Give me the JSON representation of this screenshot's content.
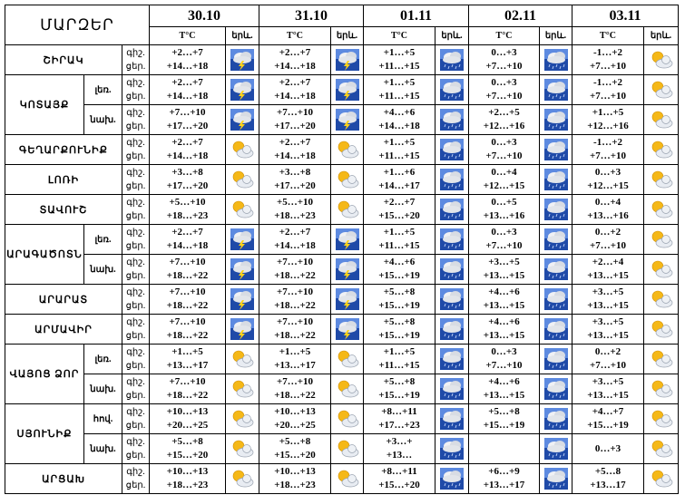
{
  "header": {
    "corner": "ՄԱՐԶԵՐ",
    "dates": [
      "30.10",
      "31.10",
      "01.11",
      "02.11",
      "03.11"
    ],
    "temp_label": "T°C",
    "icon_label": "երև."
  },
  "tod": {
    "night": "գիշ.",
    "day": "ցեր."
  },
  "rows": [
    {
      "region": "ՇԻՐԱԿ",
      "sub": "",
      "cells": [
        {
          "night": "+2…+7",
          "day": "+14…+18",
          "icon": "thunderstorm-icon"
        },
        {
          "night": "+2…+7",
          "day": "+14…+18",
          "icon": "thunderstorm-icon"
        },
        {
          "night": "+1…+5",
          "day": "+11…+15",
          "icon": "cloud-rain-icon"
        },
        {
          "night": "0…+3",
          "day": "+7…+10",
          "icon": "cloud-rain-icon"
        },
        {
          "night": "-1…+2",
          "day": "+7…+10",
          "icon": "partly-cloudy-icon"
        }
      ]
    },
    {
      "region": "ԿՈՏԱՅՔ",
      "sub": "լեռ.",
      "cells": [
        {
          "night": "+2…+7",
          "day": "+14…+18",
          "icon": "thunderstorm-icon"
        },
        {
          "night": "+2…+7",
          "day": "+14…+18",
          "icon": "thunderstorm-icon"
        },
        {
          "night": "+1…+5",
          "day": "+11…+15",
          "icon": "cloud-rain-icon"
        },
        {
          "night": "0…+3",
          "day": "+7…+10",
          "icon": "cloud-rain-icon"
        },
        {
          "night": "-1…+2",
          "day": "+7…+10",
          "icon": "partly-cloudy-icon"
        }
      ]
    },
    {
      "region": "",
      "sub": "նախ.",
      "cells": [
        {
          "night": "+7…+10",
          "day": "+17…+20",
          "icon": "thunderstorm-icon"
        },
        {
          "night": "+7…+10",
          "day": "+17…+20",
          "icon": "thunderstorm-icon"
        },
        {
          "night": "+4…+6",
          "day": "+14…+18",
          "icon": "cloud-rain-icon"
        },
        {
          "night": "+2…+5",
          "day": "+12…+16",
          "icon": "cloud-rain-icon"
        },
        {
          "night": "+1…+5",
          "day": "+12…+16",
          "icon": "partly-cloudy-icon"
        }
      ]
    },
    {
      "region": "ԳԵՂԱՐՔՈՒՆԻՔ",
      "sub": "",
      "cells": [
        {
          "night": "+2…+7",
          "day": "+14…+18",
          "icon": "partly-cloudy-icon"
        },
        {
          "night": "+2…+7",
          "day": "+14…+18",
          "icon": "partly-cloudy-icon"
        },
        {
          "night": "+1…+5",
          "day": "+11…+15",
          "icon": "cloud-rain-icon"
        },
        {
          "night": "0…+3",
          "day": "+7…+10",
          "icon": "cloud-rain-icon"
        },
        {
          "night": "-1…+2",
          "day": "+7…+10",
          "icon": "partly-cloudy-icon"
        }
      ]
    },
    {
      "region": "ԼՈՌԻ",
      "sub": "",
      "cells": [
        {
          "night": "+3…+8",
          "day": "+17…+20",
          "icon": "partly-cloudy-icon"
        },
        {
          "night": "+3…+8",
          "day": "+17…+20",
          "icon": "partly-cloudy-icon"
        },
        {
          "night": "+1…+6",
          "day": "+14…+17",
          "icon": "cloud-rain-icon"
        },
        {
          "night": "0…+4",
          "day": "+12…+15",
          "icon": "cloud-rain-icon"
        },
        {
          "night": "0…+3",
          "day": "+12…+15",
          "icon": "partly-cloudy-icon"
        }
      ]
    },
    {
      "region": "ՏԱՎՈՒՇ",
      "sub": "",
      "cells": [
        {
          "night": "+5…+10",
          "day": "+18…+23",
          "icon": "partly-cloudy-icon"
        },
        {
          "night": "+5…+10",
          "day": "+18…+23",
          "icon": "partly-cloudy-icon"
        },
        {
          "night": "+2…+7",
          "day": "+15…+20",
          "icon": "cloud-rain-icon"
        },
        {
          "night": "0…+5",
          "day": "+13…+16",
          "icon": "cloud-rain-icon"
        },
        {
          "night": "0…+4",
          "day": "+13…+16",
          "icon": "partly-cloudy-icon"
        }
      ]
    },
    {
      "region": "ԱՐԱԳԱԾՈՏՆ",
      "sub": "լեռ.",
      "cells": [
        {
          "night": "+2…+7",
          "day": "+14…+18",
          "icon": "thunderstorm-icon"
        },
        {
          "night": "+2…+7",
          "day": "+14…+18",
          "icon": "thunderstorm-icon"
        },
        {
          "night": "+1…+5",
          "day": "+11…+15",
          "icon": "cloud-rain-icon"
        },
        {
          "night": "0…+3",
          "day": "+7…+10",
          "icon": "cloud-rain-icon"
        },
        {
          "night": "0…+2",
          "day": "+7…+10",
          "icon": "partly-cloudy-icon"
        }
      ]
    },
    {
      "region": "",
      "sub": "նախ.",
      "cells": [
        {
          "night": "+7…+10",
          "day": "+18…+22",
          "icon": "thunderstorm-icon"
        },
        {
          "night": "+7…+10",
          "day": "+18…+22",
          "icon": "thunderstorm-icon"
        },
        {
          "night": "+4…+6",
          "day": "+15…+19",
          "icon": "cloud-rain-icon"
        },
        {
          "night": "+3…+5",
          "day": "+13…+15",
          "icon": "cloud-rain-icon"
        },
        {
          "night": "+2…+4",
          "day": "+13…+15",
          "icon": "partly-cloudy-icon"
        }
      ]
    },
    {
      "region": "ԱՐԱՐԱՏ",
      "sub": "",
      "cells": [
        {
          "night": "+7…+10",
          "day": "+18…+22",
          "icon": "thunderstorm-icon"
        },
        {
          "night": "+7…+10",
          "day": "+18…+22",
          "icon": "thunderstorm-icon"
        },
        {
          "night": "+5…+8",
          "day": "+15…+19",
          "icon": "cloud-rain-icon"
        },
        {
          "night": "+4…+6",
          "day": "+13…+15",
          "icon": "cloud-rain-icon"
        },
        {
          "night": "+3…+5",
          "day": "+13…+15",
          "icon": "partly-cloudy-icon"
        }
      ]
    },
    {
      "region": "ԱՐՄԱՎԻՐ",
      "sub": "",
      "cells": [
        {
          "night": "+7…+10",
          "day": "+18…+22",
          "icon": "thunderstorm-icon"
        },
        {
          "night": "+7…+10",
          "day": "+18…+22",
          "icon": "thunderstorm-icon"
        },
        {
          "night": "+5…+8",
          "day": "+15…+19",
          "icon": "cloud-rain-icon"
        },
        {
          "night": "+4…+6",
          "day": "+13…+15",
          "icon": "cloud-rain-icon"
        },
        {
          "night": "+3…+5",
          "day": "+13…+15",
          "icon": "partly-cloudy-icon"
        }
      ]
    },
    {
      "region": "ՎԱՅՈՑ ՁՈՐ",
      "sub": "լեռ.",
      "cells": [
        {
          "night": "+1…+5",
          "day": "+13…+17",
          "icon": "partly-cloudy-icon"
        },
        {
          "night": "+1…+5",
          "day": "+13…+17",
          "icon": "partly-cloudy-icon"
        },
        {
          "night": "+1…+5",
          "day": "+11…+15",
          "icon": "cloud-rain-icon"
        },
        {
          "night": "0…+3",
          "day": "+7…+10",
          "icon": "cloud-rain-icon"
        },
        {
          "night": "0…+2",
          "day": "+7…+10",
          "icon": "partly-cloudy-icon"
        }
      ]
    },
    {
      "region": "",
      "sub": "նախ.",
      "cells": [
        {
          "night": "+7…+10",
          "day": "+18…+22",
          "icon": "partly-cloudy-icon"
        },
        {
          "night": "+7…+10",
          "day": "+18…+22",
          "icon": "partly-cloudy-icon"
        },
        {
          "night": "+5…+8",
          "day": "+15…+19",
          "icon": "cloud-rain-icon"
        },
        {
          "night": "+4…+6",
          "day": "+13…+15",
          "icon": "cloud-rain-icon"
        },
        {
          "night": "+3…+5",
          "day": "+13…+15",
          "icon": "partly-cloudy-icon"
        }
      ]
    },
    {
      "region": "ՍՅՈՒՆԻՔ",
      "sub": "հով.",
      "cells": [
        {
          "night": "+10…+13",
          "day": "+20…+25",
          "icon": "partly-cloudy-icon"
        },
        {
          "night": "+10…+13",
          "day": "+20…+25",
          "icon": "partly-cloudy-icon"
        },
        {
          "night": "+8…+11",
          "day": "+17…+23",
          "icon": "cloud-rain-icon"
        },
        {
          "night": "+5…+8",
          "day": "+15…+19",
          "icon": "cloud-rain-icon"
        },
        {
          "night": "+4…+7",
          "day": "+15…+19",
          "icon": "partly-cloudy-icon"
        }
      ]
    },
    {
      "region": "",
      "sub": "նախ.",
      "cells": [
        {
          "night": "+5…+8",
          "day": "+15…+20",
          "icon": "partly-cloudy-icon"
        },
        {
          "night": "+5…+8",
          "day": "+15…+20",
          "icon": "partly-cloudy-icon"
        },
        {
          "night": "+3…+",
          "day": "+13…",
          "icon": "cloud-rain-icon"
        },
        {
          "night": "",
          "day": "",
          "icon": "cloud-rain-icon"
        },
        {
          "night": "0…+3",
          "day": "",
          "icon": "partly-cloudy-icon"
        }
      ]
    },
    {
      "region": "ԱՐՑԱԽ",
      "sub": "",
      "cells": [
        {
          "night": "+10…+13",
          "day": "+18…+23",
          "icon": "partly-cloudy-icon"
        },
        {
          "night": "+10…+13",
          "day": "+18…+23",
          "icon": "partly-cloudy-icon"
        },
        {
          "night": "+8…+11",
          "day": "+15…+20",
          "icon": "cloud-rain-icon"
        },
        {
          "night": "+6…+9",
          "day": "+13…+17",
          "icon": "cloud-rain-icon"
        },
        {
          "night": "+5…8",
          "day": "+13…17",
          "icon": "partly-cloudy-icon"
        }
      ]
    }
  ]
}
